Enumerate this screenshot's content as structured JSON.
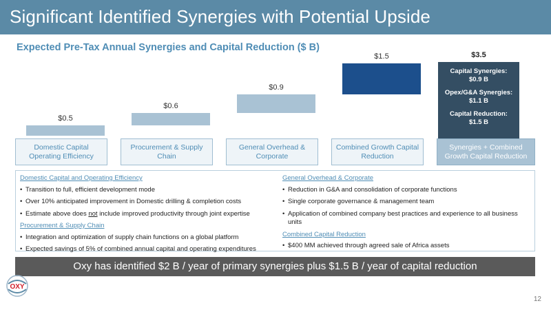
{
  "title": "Significant Identified Synergies with Potential Upside",
  "subtitle": "Expected Pre-Tax Annual Synergies and Capital Reduction ($ B)",
  "chart_data": {
    "type": "bar",
    "categories": [
      "Domestic Capital Operating Efficiency",
      "Procurement & Supply Chain",
      "General Overhead & Corporate",
      "Combined Growth Capital Reduction"
    ],
    "values": [
      0.5,
      0.6,
      0.9,
      1.5
    ],
    "data_labels": [
      "$0.5",
      "$0.6",
      "$0.9",
      "$1.5"
    ],
    "waterfall": true,
    "total_label": "$3.5",
    "colors": [
      "#a9c2d4",
      "#a9c2d4",
      "#a9c2d4",
      "#1c4f8c"
    ]
  },
  "total_box": {
    "lines": [
      "Capital Synergies:",
      "$0.9 B",
      "Opex/G&A Synergies:",
      "$1.1 B",
      "Capital Reduction:",
      "$1.5 B"
    ],
    "color": "#344e63"
  },
  "categories": [
    {
      "line1": "Domestic Capital",
      "line2": "Operating Efficiency"
    },
    {
      "line1": "Procurement & Supply Chain",
      "line2": ""
    },
    {
      "line1": "General Overhead &",
      "line2": "Corporate"
    },
    {
      "line1": "Combined Growth Capital",
      "line2": "Reduction"
    },
    {
      "line1": "Synergies + Combined",
      "line2": "Growth Capital Reduction"
    }
  ],
  "details": {
    "left": {
      "sections": [
        {
          "heading": "Domestic Capital and Operating Efficiency",
          "bullets": [
            "Transition to full, efficient development mode",
            "Over 10% anticipated improvement in Domestic drilling & completion costs"
          ]
        },
        {
          "heading": "Procurement & Supply Chain",
          "bullets": [
            "Integration and optimization of supply chain functions on a global platform",
            "Expected savings of 5% of combined annual capital and operating expenditures"
          ]
        }
      ],
      "special_bullet": {
        "before": "Estimate above does ",
        "underlined": "not",
        "after": " include improved productivity through joint expertise"
      }
    },
    "right": {
      "sections": [
        {
          "heading": "General Overhead & Corporate",
          "bullets": [
            "Reduction in G&A and consolidation of corporate functions",
            "Single corporate governance & management team",
            "Application of combined company best practices and experience to all business units"
          ]
        },
        {
          "heading": "Combined Capital Reduction",
          "bullets": [
            "$400 MM achieved through agreed sale of Africa assets"
          ]
        }
      ]
    },
    "bullet_char": "•"
  },
  "banner": "Oxy has identified $2 B / year of primary synergies plus $1.5 B / year of capital reduction",
  "logo": {
    "text": "OXY",
    "icon": "oxy-logo-icon",
    "color": "#d0202a"
  },
  "page_number": "12",
  "colors": {
    "title_bar": "#5b8aa6",
    "accent": "#4f8db5",
    "banner": "#5a5a5a"
  }
}
